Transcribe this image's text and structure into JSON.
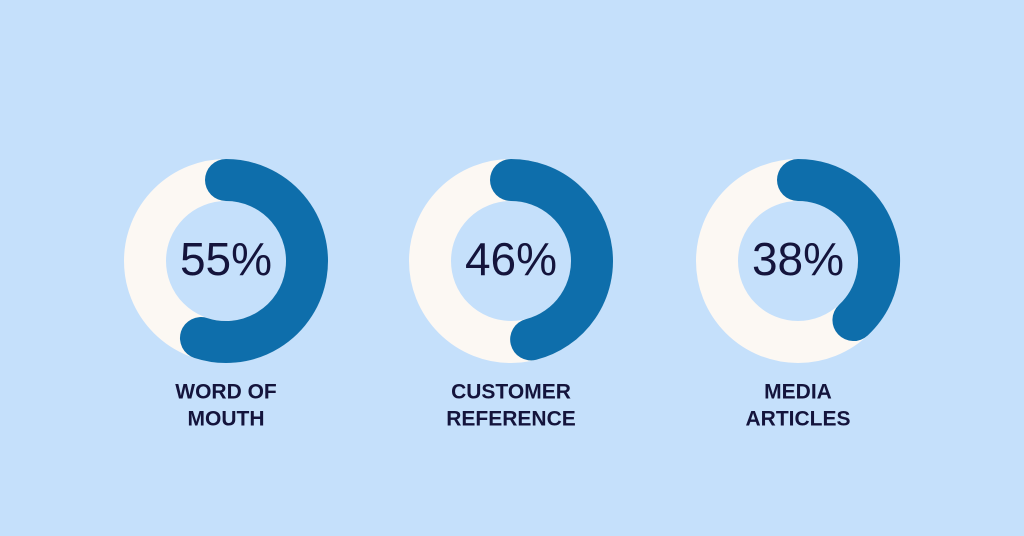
{
  "chart_data": [
    {
      "type": "donut",
      "title": [
        "WORD OF",
        "MOUTH"
      ],
      "values": [
        55
      ],
      "value_labels": [
        "55%"
      ],
      "color": "#0e6eab",
      "track_color": "#fcf8f3"
    },
    {
      "type": "donut",
      "title": [
        "CUSTOMER",
        "REFERENCE"
      ],
      "values": [
        46
      ],
      "value_labels": [
        "46%"
      ],
      "color": "#0e6eab",
      "track_color": "#fcf8f3"
    },
    {
      "type": "donut",
      "title": [
        "MEDIA",
        "ARTICLES"
      ],
      "values": [
        38
      ],
      "value_labels": [
        "38%"
      ],
      "color": "#0e6eab",
      "track_color": "#fcf8f3"
    }
  ]
}
